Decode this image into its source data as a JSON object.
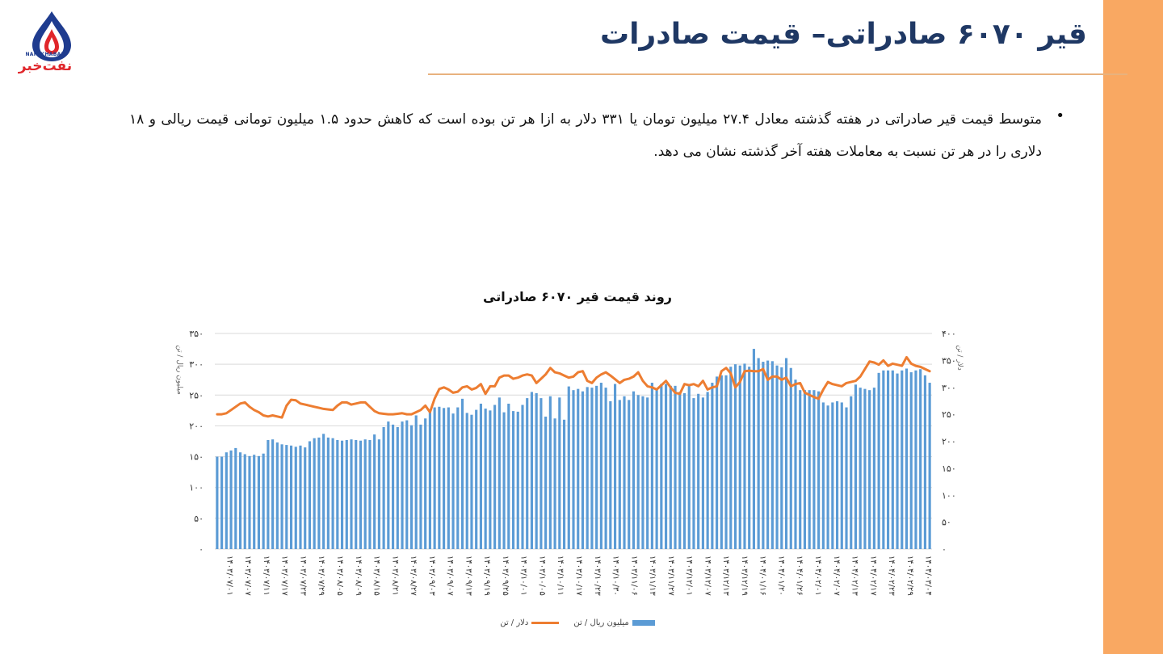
{
  "theme": {
    "accent": "#F9A862",
    "bar_color": "#5B9BD5",
    "line_color": "#ED7D31",
    "title_color": "#1F3864"
  },
  "logo": {
    "latin": "NAFTKHABAR",
    "persian": "نفت‌خبر",
    "icon": "flame-drop-icon"
  },
  "slide": {
    "title": "قیر ۶۰۷۰ صادراتی– قیمت صادرات",
    "bullet": "متوسط قیمت قیر صادراتی در هفته گذشته معادل ۲۷.۴ میلیون تومان یا ۳۳۱ دلار به ازا هر تن بوده است که کاهش حدود ۱.۵ میلیون تومانی قیمت ریالی و ۱۸ دلاری را در هر تن نسبت به معاملات هفته آخر گذشته نشان می دهد."
  },
  "chart_data": {
    "type": "bar+line",
    "title": "روند قیمت قیر ۶۰۷۰ صادراتی",
    "left_axis": {
      "label": "میلیون ریال / تن",
      "range": [
        0,
        350
      ],
      "ticks": [
        "۰",
        "۵۰",
        "۱۰۰",
        "۱۵۰",
        "۲۰۰",
        "۲۵۰",
        "۳۰۰",
        "۳۵۰"
      ]
    },
    "right_axis": {
      "label": "دلار / تن",
      "range": [
        0,
        400
      ],
      "ticks": [
        "۰",
        "۵۰",
        "۱۰۰",
        "۱۵۰",
        "۲۰۰",
        "۲۵۰",
        "۳۰۰",
        "۳۵۰",
        "۴۰۰"
      ]
    },
    "x_tick_labels": [
      "۱۴۰۳/۰۷/۰۱",
      "۱۴۰۳/۰۷/۰۷",
      "۱۴۰۳/۰۷/۱۱",
      "۱۴۰۳/۰۷/۱۷",
      "۱۴۰۳/۰۷/۲۳",
      "۱۴۰۳/۰۷/۲۹",
      "۱۴۰۳/۰۸/۰۵",
      "۱۴۰۳/۰۸/۰۹",
      "۱۴۰۳/۰۸/۱۵",
      "۱۴۰۳/۰۸/۲۱",
      "۱۴۰۳/۰۸/۲۷",
      "۱۴۰۳/۰۹/۰۳",
      "۱۴۰۳/۰۹/۰۷",
      "۱۴۰۳/۰۹/۱۳",
      "۱۴۰۳/۰۹/۱۹",
      "۱۴۰۳/۰۹/۲۵",
      "۱۴۰۳/۱۰/۰۱",
      "۱۴۰۳/۱۰/۰۵",
      "۱۴۰۳/۱۰/۱۱",
      "۱۴۰۳/۱۰/۱۷",
      "۱۴۰۳/۱۰/۲۳",
      "۱۴۰۳/۱۰/۳۰",
      "۱۴۰۳/۱۱/۰۶",
      "۱۴۰۳/۱۱/۱۳",
      "۱۴۰۳/۱۱/۲۷",
      "۱۴۰۳/۱۲/۰۱",
      "۱۴۰۳/۱۲/۰۷",
      "۱۴۰۳/۱۲/۱۳",
      "۱۴۰۳/۱۲/۱۹",
      "۱۴۰۴/۰۱/۱۶",
      "۱۴۰۴/۰۱/۲۰",
      "۱۴۰۴/۰۱/۲۶",
      "۱۴۰۴/۰۲/۰۱",
      "۱۴۰۴/۰۲/۰۷",
      "۱۴۰۴/۰۲/۱۳",
      "۱۴۰۴/۰۲/۱۷",
      "۱۴۰۴/۰۲/۲۳",
      "۱۴۰۴/۰۲/۲۹",
      "۱۴۰۴/۰۳/۰۴"
    ],
    "series": [
      {
        "name": "میلیون ریال / تن",
        "type": "bar",
        "axis": "left",
        "values": [
          150,
          150,
          157,
          160,
          164,
          157,
          154,
          151,
          153,
          151,
          155,
          177,
          178,
          173,
          170,
          169,
          168,
          166,
          168,
          165,
          175,
          180,
          181,
          187,
          181,
          180,
          177,
          176,
          177,
          178,
          177,
          176,
          178,
          177,
          186,
          178,
          198,
          207,
          202,
          198,
          207,
          209,
          201,
          217,
          202,
          212,
          224,
          230,
          231,
          229,
          230,
          220,
          230,
          244,
          221,
          218,
          226,
          236,
          228,
          225,
          234,
          246,
          222,
          236,
          224,
          223,
          234,
          245,
          255,
          253,
          245,
          215,
          248,
          212,
          246,
          210,
          264,
          258,
          260,
          256,
          263,
          262,
          265,
          270,
          262,
          240,
          268,
          242,
          248,
          242,
          256,
          250,
          248,
          246,
          270,
          260,
          268,
          268,
          265,
          265,
          255,
          253,
          265,
          245,
          252,
          246,
          255,
          270,
          280,
          282,
          282,
          296,
          300,
          298,
          301,
          296,
          325,
          310,
          304,
          306,
          305,
          298,
          295,
          310,
          294,
          275,
          258,
          258,
          258,
          258,
          256,
          238,
          233,
          238,
          240,
          238,
          230,
          248,
          267,
          262,
          260,
          258,
          262,
          286,
          290,
          290,
          290,
          285,
          290,
          293,
          287,
          290,
          292,
          282,
          270
        ]
      },
      {
        "name": "دلار / تن",
        "type": "line",
        "axis": "right",
        "values": [
          250,
          250,
          252,
          258,
          264,
          270,
          272,
          264,
          258,
          254,
          248,
          246,
          248,
          246,
          244,
          266,
          277,
          276,
          270,
          268,
          266,
          264,
          262,
          260,
          259,
          258,
          266,
          272,
          272,
          268,
          270,
          272,
          272,
          264,
          256,
          252,
          251,
          250,
          250,
          251,
          252,
          250,
          250,
          254,
          258,
          266,
          254,
          279,
          297,
          300,
          296,
          290,
          292,
          300,
          302,
          296,
          299,
          306,
          288,
          302,
          302,
          318,
          322,
          322,
          316,
          318,
          322,
          324,
          322,
          308,
          316,
          324,
          336,
          328,
          326,
          322,
          318,
          320,
          328,
          330,
          312,
          308,
          318,
          324,
          328,
          322,
          315,
          308,
          314,
          316,
          320,
          328,
          312,
          302,
          300,
          296,
          304,
          312,
          300,
          290,
          288,
          306,
          304,
          306,
          302,
          312,
          296,
          300,
          302,
          330,
          336,
          326,
          300,
          310,
          330,
          331,
          330,
          330,
          334,
          314,
          320,
          320,
          314,
          318,
          302,
          306,
          308,
          290,
          286,
          282,
          279,
          296,
          310,
          306,
          304,
          302,
          308,
          310,
          312,
          320,
          334,
          348,
          346,
          342,
          350,
          340,
          344,
          342,
          340,
          356,
          344,
          340,
          338,
          334,
          330
        ]
      }
    ]
  }
}
